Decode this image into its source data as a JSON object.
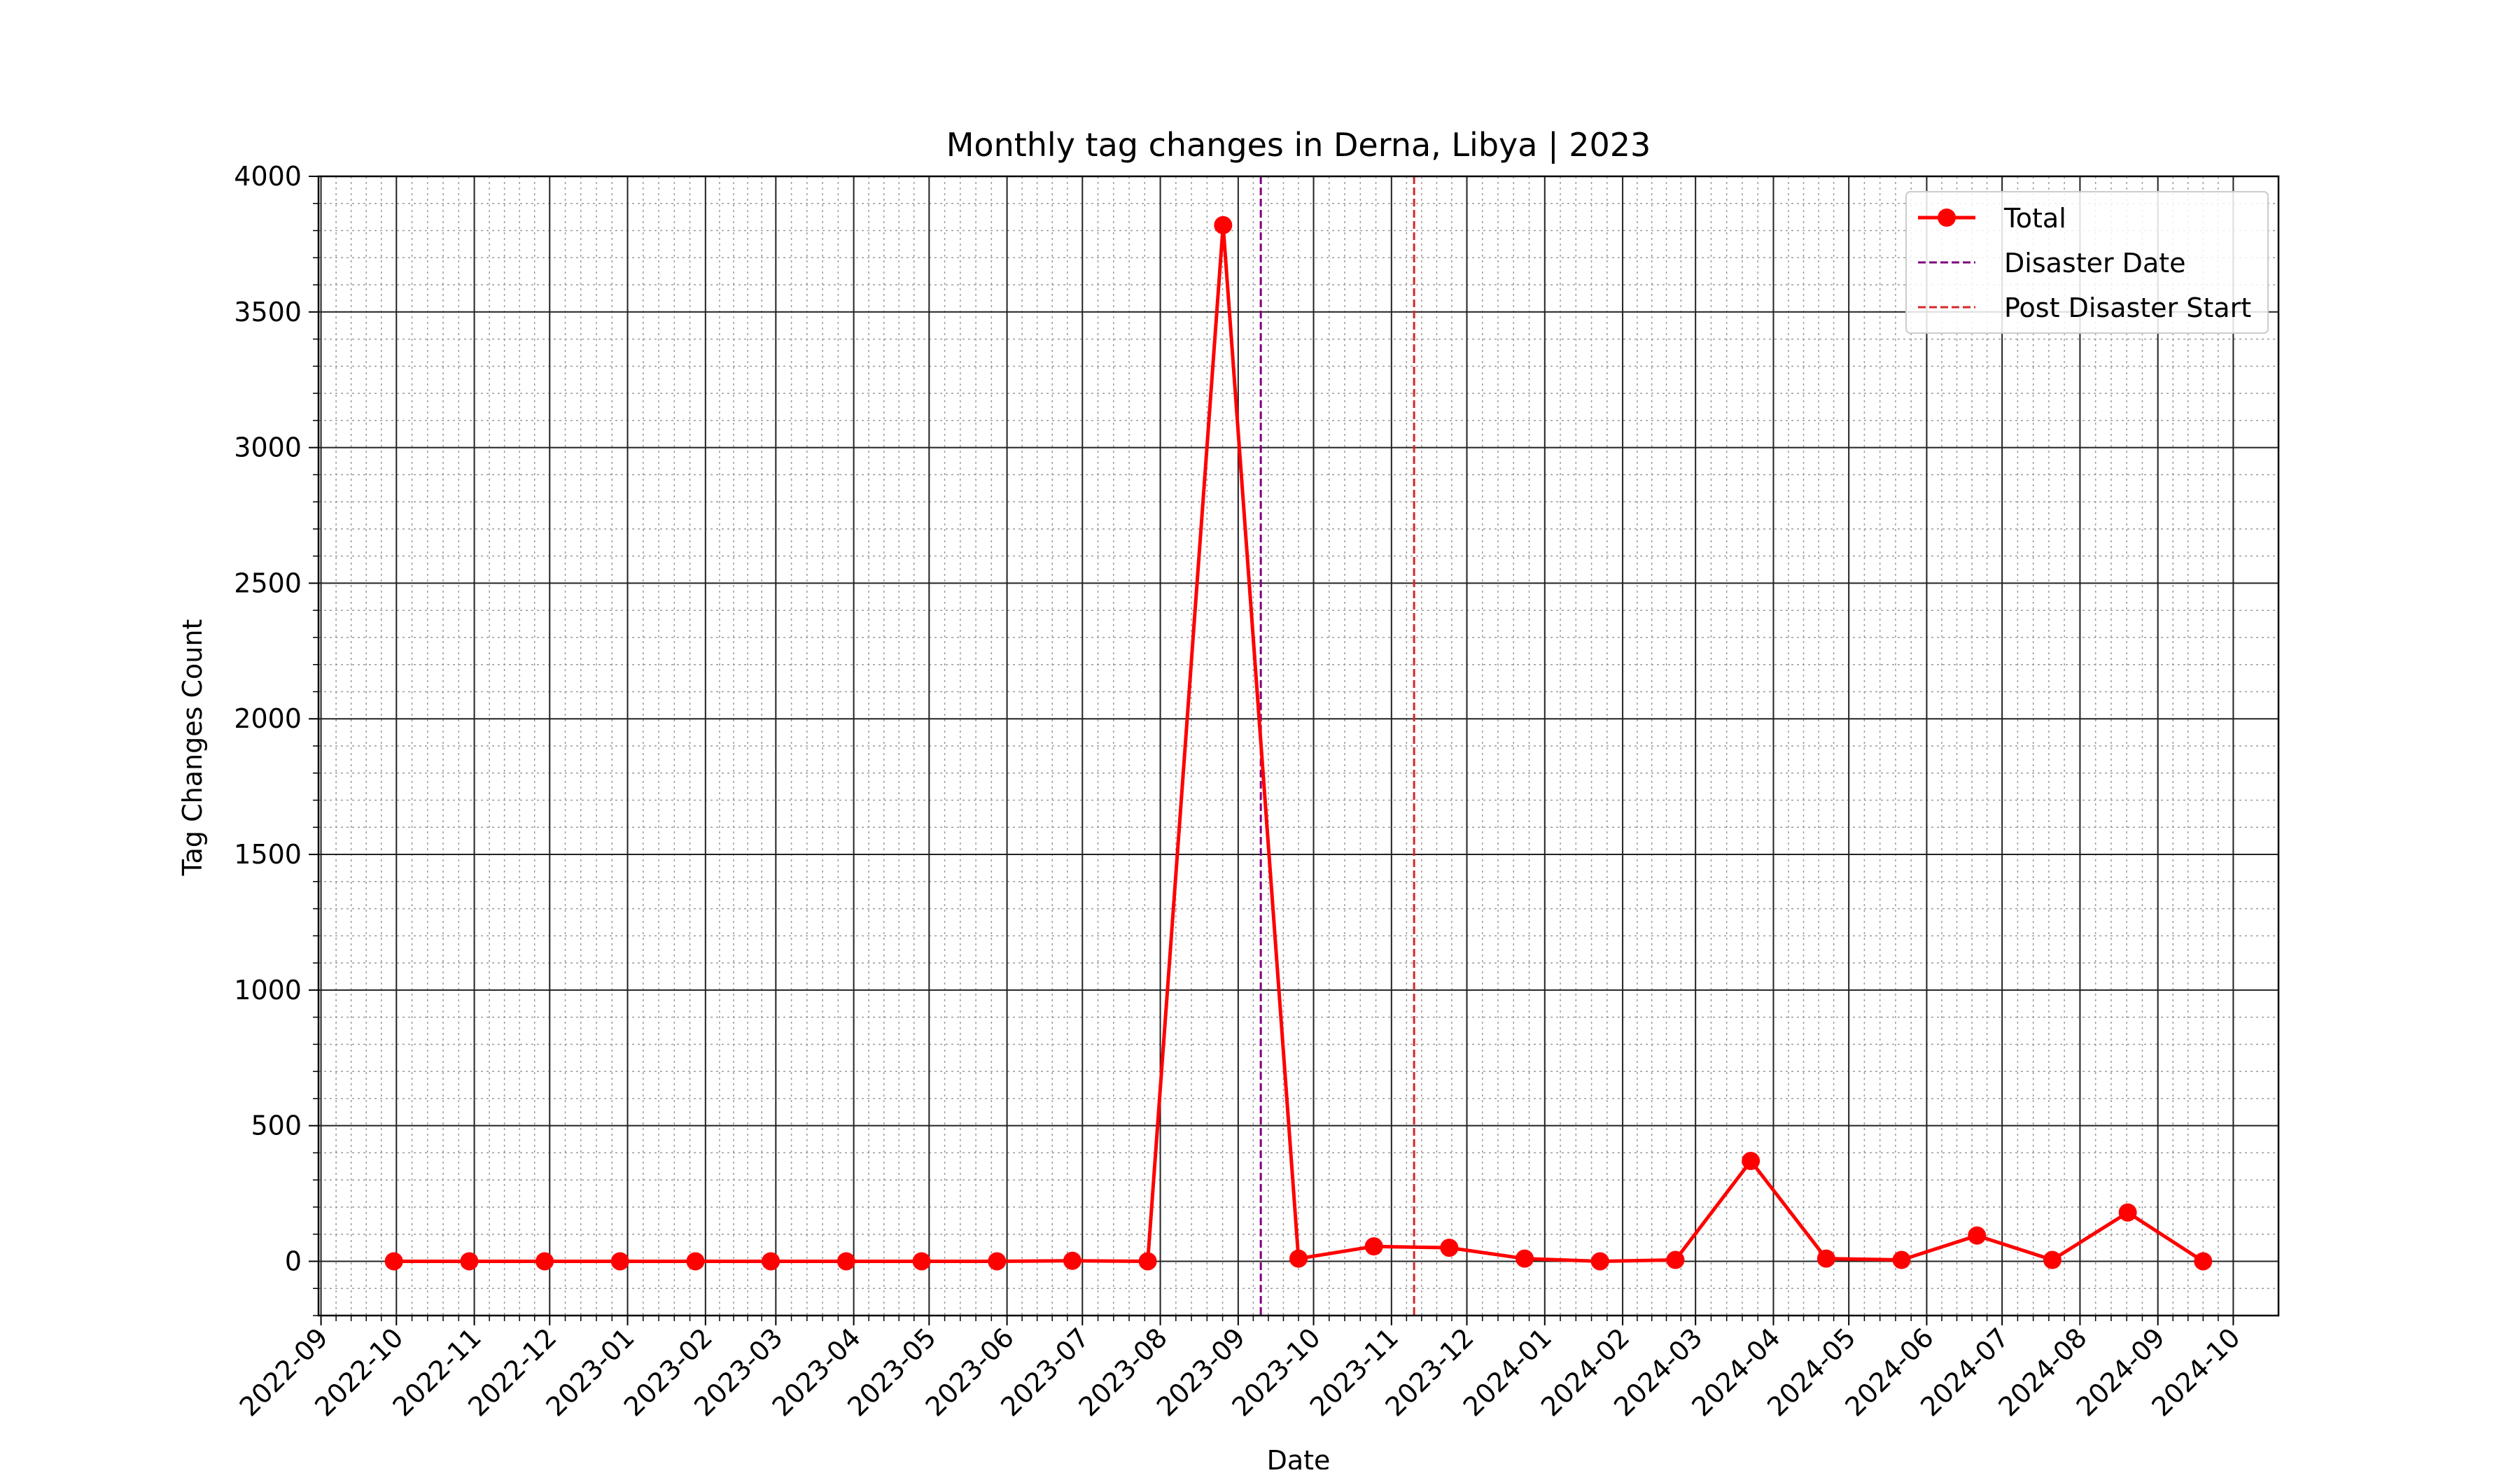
{
  "chart_data": {
    "type": "line",
    "title": "Monthly tag changes in Derna, Libya | 2023",
    "xlabel": "Date",
    "ylabel": "Tag Changes Count",
    "x_range": [
      "2022-08-31",
      "2024-10-19"
    ],
    "ylim": [
      -200,
      4000
    ],
    "y_ticks": [
      0,
      500,
      1000,
      1500,
      2000,
      2500,
      3000,
      3500,
      4000
    ],
    "x_ticks": [
      "2022-09",
      "2022-10",
      "2022-11",
      "2022-12",
      "2023-01",
      "2023-02",
      "2023-03",
      "2023-04",
      "2023-05",
      "2023-06",
      "2023-07",
      "2023-08",
      "2023-09",
      "2023-10",
      "2023-11",
      "2023-12",
      "2024-01",
      "2024-02",
      "2024-03",
      "2024-04",
      "2024-05",
      "2024-06",
      "2024-07",
      "2024-08",
      "2024-09",
      "2024-10"
    ],
    "grid": true,
    "minor_grid": true,
    "legend_position": "top-right",
    "series": [
      {
        "name": "Total",
        "color": "#ff0000",
        "marker": "circle",
        "x": [
          "2022-09-30",
          "2022-10-30",
          "2022-11-29",
          "2022-12-29",
          "2023-01-28",
          "2023-02-27",
          "2023-03-29",
          "2023-04-28",
          "2023-05-28",
          "2023-06-27",
          "2023-07-27",
          "2023-08-26",
          "2023-09-25",
          "2023-10-25",
          "2023-11-24",
          "2023-12-24",
          "2024-01-23",
          "2024-02-22",
          "2024-03-23",
          "2024-04-22",
          "2024-05-22",
          "2024-06-21",
          "2024-07-21",
          "2024-08-20",
          "2024-09-19"
        ],
        "values": [
          0,
          0,
          0,
          0,
          0,
          0,
          0,
          0,
          0,
          2,
          0,
          3820,
          10,
          55,
          50,
          10,
          0,
          5,
          370,
          10,
          5,
          95,
          5,
          180,
          0
        ]
      }
    ],
    "vlines": [
      {
        "name": "Disaster Date",
        "x": "2023-09-10",
        "color": "#800080",
        "style": "dashed"
      },
      {
        "name": "Post Disaster Start",
        "x": "2023-11-10",
        "color": "#d62728",
        "style": "dashed"
      }
    ]
  }
}
